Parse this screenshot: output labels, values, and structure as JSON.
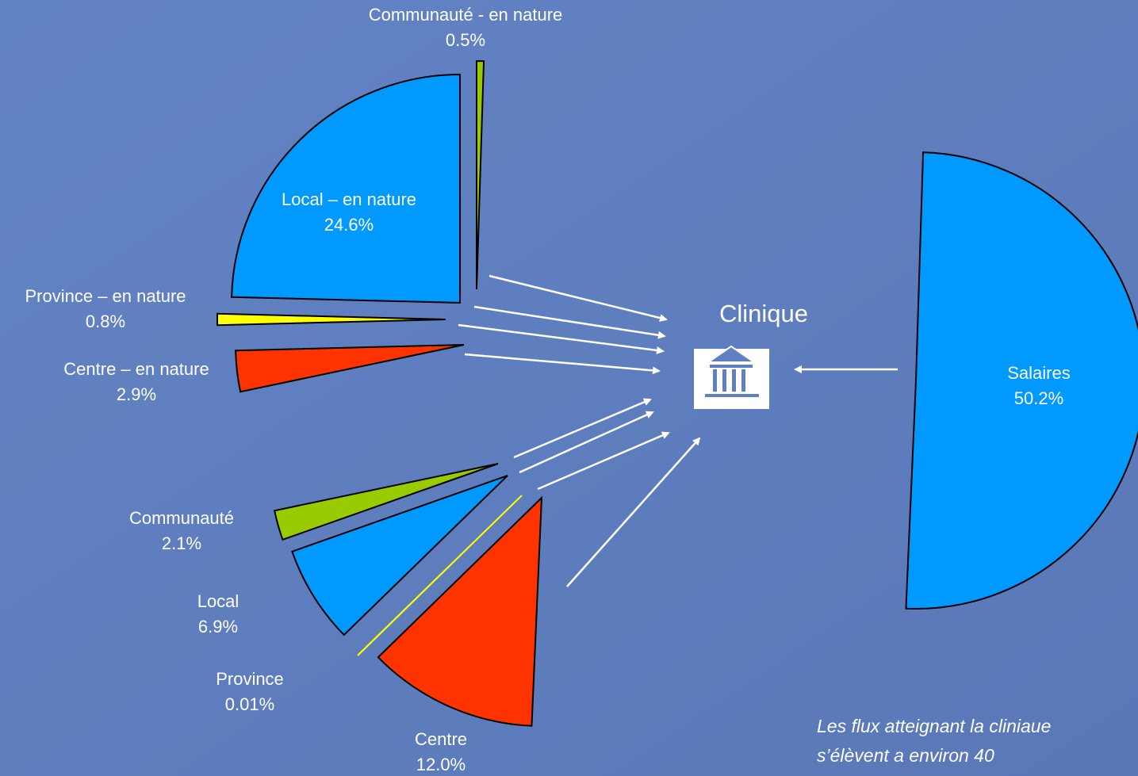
{
  "chart_data": {
    "type": "pie",
    "categories": [
      "Communauté - en nature",
      "Salaires",
      "Centre",
      "Province",
      "Local",
      "Communauté",
      "Centre – en nature",
      "Province – en nature",
      "Local – en nature"
    ],
    "values": [
      0.5,
      50.2,
      12.0,
      0.01,
      6.9,
      2.1,
      2.9,
      0.8,
      24.6
    ],
    "value_labels": [
      "0.5%",
      "50.2%",
      "12.0%",
      "0.01%",
      "6.9%",
      "2.1%",
      "2.9%",
      "0.8%",
      "24.6%"
    ],
    "colors": [
      "#99cc00",
      "#0099ff",
      "#ff3300",
      "#ffff00",
      "#0099ff",
      "#99cc00",
      "#ff3300",
      "#ffff00",
      "#0099ff"
    ],
    "center_label": "Clinique",
    "annotation": [
      "Les flux atteignant la cliniaue",
      "s’élèvent a environ 40"
    ]
  }
}
